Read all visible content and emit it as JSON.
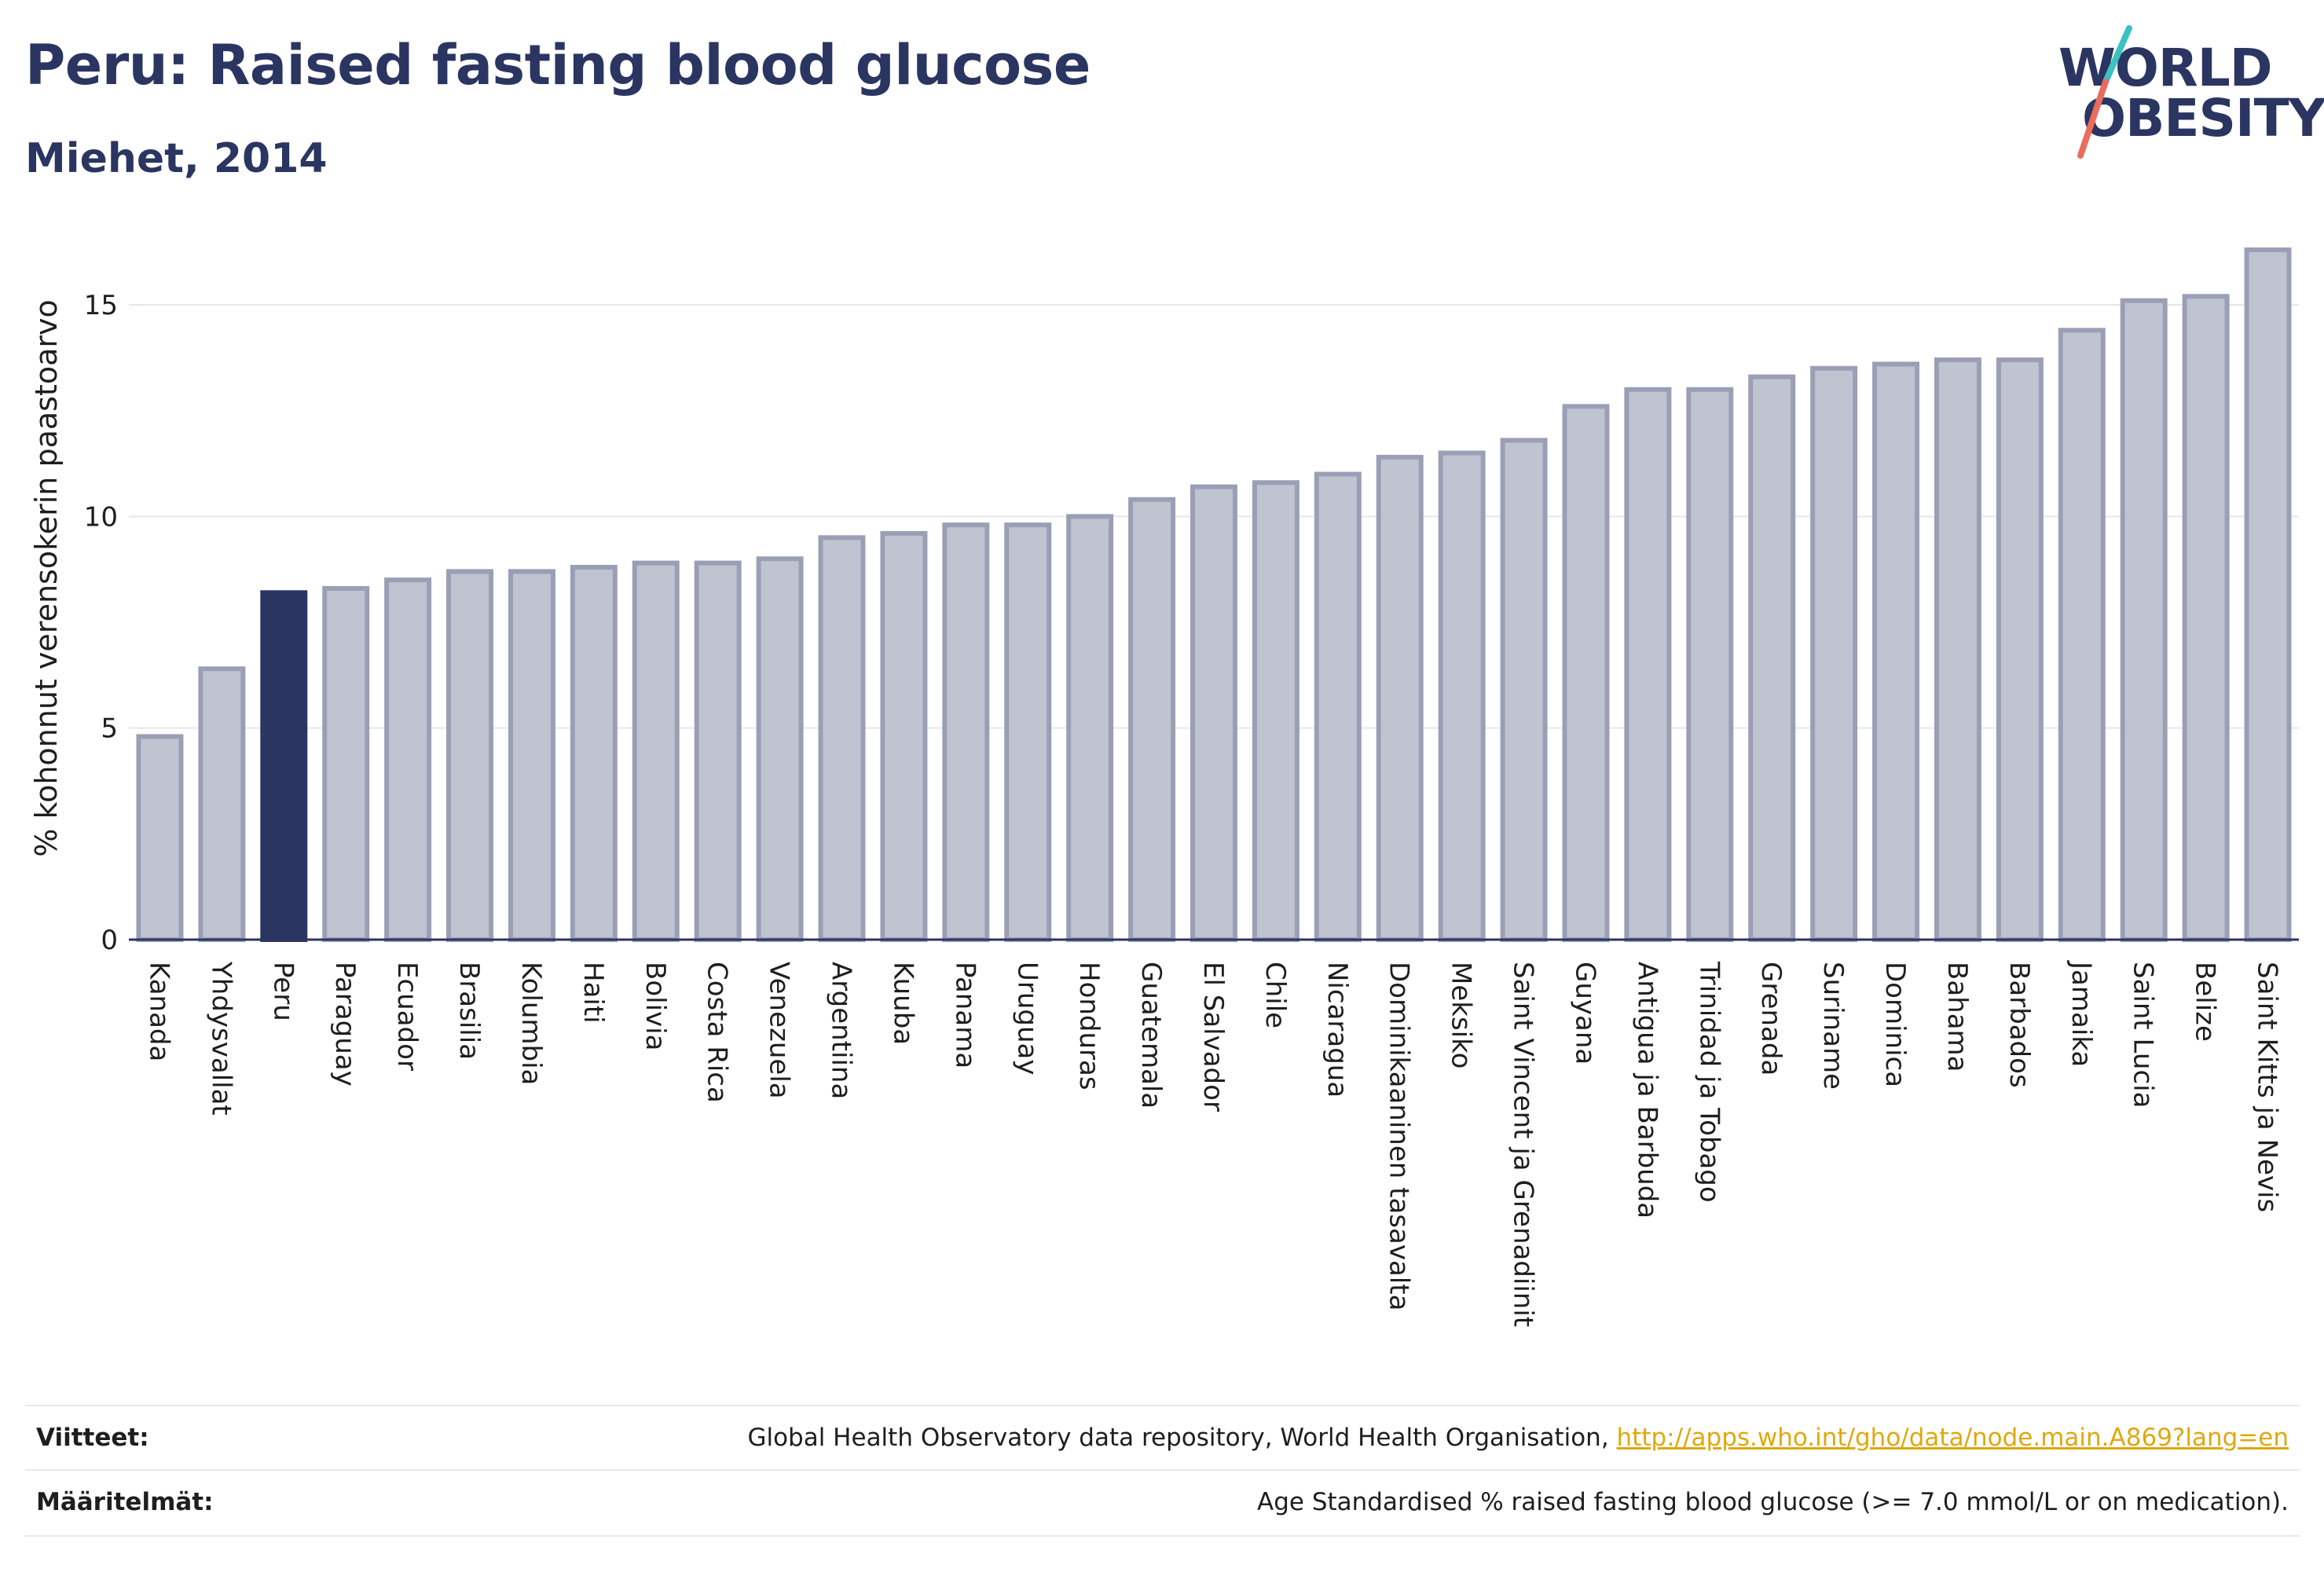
{
  "header": {
    "title": "Peru: Raised fasting blood glucose",
    "subtitle": "Miehet, 2014"
  },
  "logo": {
    "line1": "WORLD",
    "line2": "OBESITY",
    "colors": {
      "text": "#2b3561",
      "slash_top": "#3cc1c2",
      "slash_bottom": "#ea6c5b"
    }
  },
  "chart_data": {
    "type": "bar",
    "title": "Peru: Raised fasting blood glucose",
    "subtitle": "Miehet, 2014",
    "xlabel": "",
    "ylabel": "% kohonnut verensokerin paastoarvo",
    "ylim": [
      0,
      16.3
    ],
    "yticks": [
      0,
      5,
      10,
      15
    ],
    "grid": true,
    "highlight": "Peru",
    "colors": {
      "bar": "#c0c3d0",
      "bar_border": "#9a9fb6",
      "highlight": "#2b3561"
    },
    "categories": [
      "Kanada",
      "Yhdysvallat",
      "Peru",
      "Paraguay",
      "Ecuador",
      "Brasilia",
      "Kolumbia",
      "Haiti",
      "Bolivia",
      "Costa Rica",
      "Venezuela",
      "Argentiina",
      "Kuuba",
      "Panama",
      "Uruguay",
      "Honduras",
      "Guatemala",
      "El Salvador",
      "Chile",
      "Nicaragua",
      "Dominikaaninen tasavalta",
      "Meksiko",
      "Saint Vincent ja Grenadiinit",
      "Guyana",
      "Antigua ja Barbuda",
      "Trinidad ja Tobago",
      "Grenada",
      "Suriname",
      "Dominica",
      "Bahama",
      "Barbados",
      "Jamaika",
      "Saint Lucia",
      "Belize",
      "Saint Kitts ja Nevis"
    ],
    "values": [
      4.8,
      6.4,
      8.2,
      8.3,
      8.5,
      8.7,
      8.7,
      8.8,
      8.9,
      8.9,
      9.0,
      9.5,
      9.6,
      9.8,
      9.8,
      10.0,
      10.4,
      10.7,
      10.8,
      11.0,
      11.4,
      11.5,
      11.8,
      12.6,
      13.0,
      13.0,
      13.3,
      13.5,
      13.6,
      13.7,
      13.7,
      14.4,
      15.1,
      15.2,
      16.3
    ]
  },
  "footer": {
    "sources_label": "Viitteet:",
    "sources_text": "Global Health Observatory data repository, World Health Organisation, ",
    "sources_link": "http://apps.who.int/gho/data/node.main.A869?lang=en",
    "definitions_label": "Määritelmät:",
    "definitions_text": "Age Standardised % raised fasting blood glucose (>= 7.0 mmol/L or on medication)."
  }
}
